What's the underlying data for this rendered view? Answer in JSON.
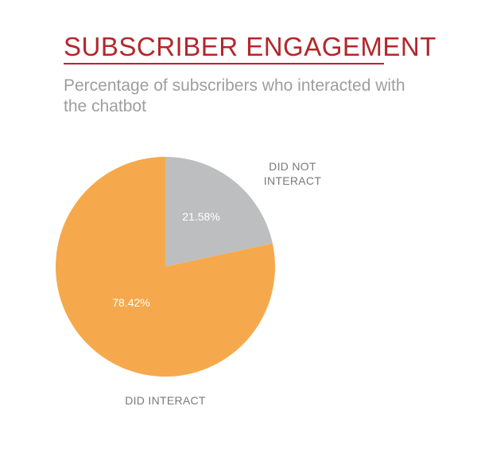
{
  "chart_data": {
    "type": "pie",
    "title": "SUBSCRIBER ENGAGEMENT",
    "subtitle": "Percentage of subscribers who interacted with the chatbot",
    "slices": [
      {
        "category_lines": [
          "DID NOT",
          "INTERACT"
        ],
        "value": 21.58,
        "value_label": "21.58%",
        "color": "#bdbec0"
      },
      {
        "category_lines": [
          "DID INTERACT"
        ],
        "value": 78.42,
        "value_label": "78.42%",
        "color": "#f6a94c"
      }
    ],
    "start_angle_deg": 0,
    "direction": "clockwise",
    "title_color": "#b3272b"
  }
}
